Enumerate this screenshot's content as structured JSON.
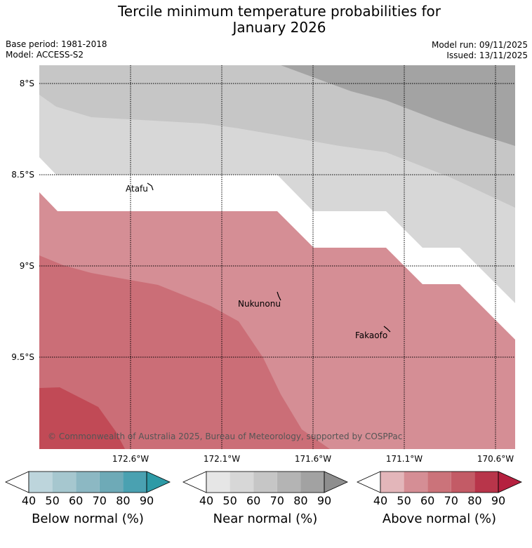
{
  "title": {
    "line1": "Tercile minimum temperature probabilities for",
    "line2": "January 2026"
  },
  "meta": {
    "base_period": "Base period: 1981-2018",
    "model": "Model: ACCESS-S2",
    "model_run": "Model run: 09/11/2025",
    "issued": "Issued: 13/11/2025"
  },
  "map": {
    "lat_labels": [
      "8°S",
      "8.5°S",
      "9°S",
      "9.5°S"
    ],
    "lon_labels": [
      "172.6°W",
      "172.1°W",
      "171.6°W",
      "171.1°W",
      "170.6°W"
    ],
    "places": [
      "Atafu",
      "Nukunonu",
      "Fakaofo"
    ],
    "copyright": "© Commonwealth of Australia 2025, Bureau of Meteorology, supported by COSPPac"
  },
  "legend": {
    "ticks": [
      "40",
      "50",
      "60",
      "70",
      "80",
      "90"
    ],
    "below": {
      "title": "Below normal (%)",
      "colors": [
        "#ffffff",
        "#bdd5dc",
        "#a6c7cf",
        "#8cb8c3",
        "#6eaab7",
        "#4aa1b1",
        "#2d9aa6"
      ]
    },
    "near": {
      "title": "Near normal (%)",
      "colors": [
        "#ffffff",
        "#e6e6e6",
        "#d7d7d7",
        "#c6c6c6",
        "#b4b4b4",
        "#a2a2a2",
        "#8e8e8e"
      ]
    },
    "above": {
      "title": "Above normal (%)",
      "colors": [
        "#ffffff",
        "#e3b6ba",
        "#d58e95",
        "#cb737a",
        "#c35b66",
        "#b8354a",
        "#b5203f"
      ]
    }
  }
}
